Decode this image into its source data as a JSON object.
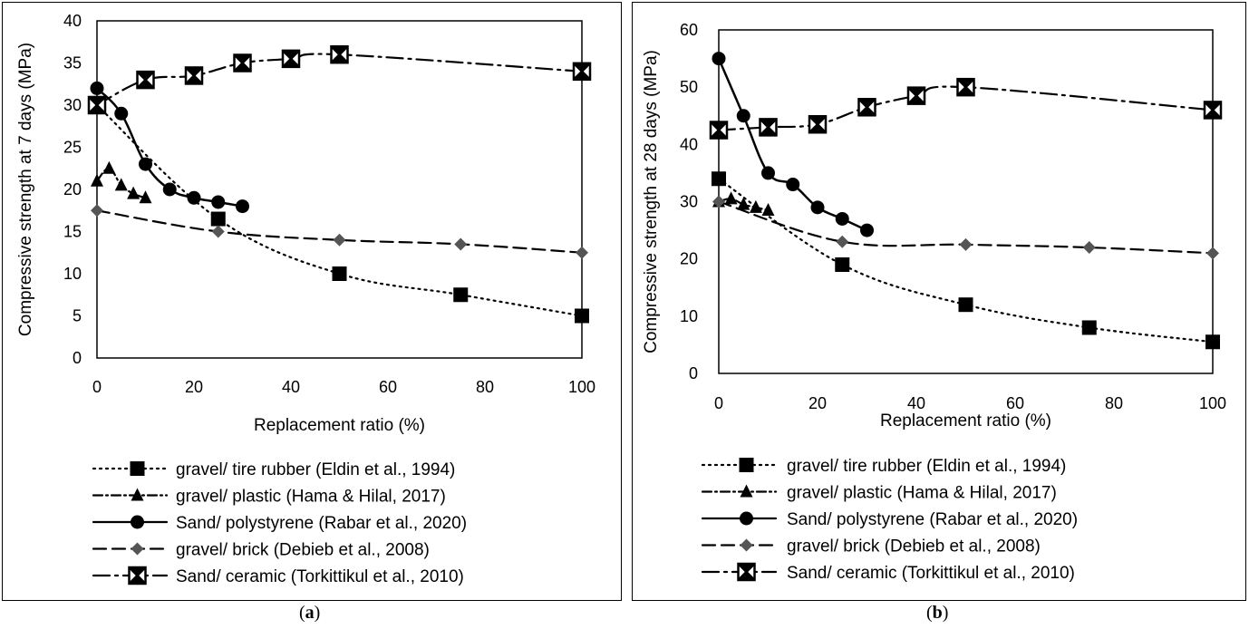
{
  "chart_data": [
    {
      "type": "line",
      "panel_label": "a",
      "xlabel": "Replacement ratio (%)",
      "ylabel": "Compressive strength at 7 days (MPa)",
      "xlim": [
        0,
        100
      ],
      "ylim": [
        0,
        40
      ],
      "xticks": [
        0,
        20,
        40,
        60,
        80,
        100
      ],
      "yticks": [
        0,
        5,
        10,
        15,
        20,
        25,
        30,
        35,
        40
      ],
      "grid": false,
      "legend_position": "bottom",
      "series": [
        {
          "name": "gravel/ tire rubber (Eldin et al., 1994)",
          "line": "dotted",
          "marker": "square",
          "x": [
            0,
            25,
            50,
            75,
            100
          ],
          "y": [
            30,
            16.5,
            10,
            7.5,
            5
          ]
        },
        {
          "name": "gravel/ plastic (Hama & Hilal, 2017)",
          "line": "dashdot",
          "marker": "triangle",
          "x": [
            0,
            2.5,
            5,
            7.5,
            10
          ],
          "y": [
            21,
            22.5,
            20.5,
            19.5,
            19
          ]
        },
        {
          "name": "Sand/ polystyrene (Rabar et al., 2020)",
          "line": "solid",
          "marker": "circle",
          "x": [
            0,
            5,
            10,
            15,
            20,
            25,
            30
          ],
          "y": [
            32,
            29,
            23,
            20,
            19,
            18.5,
            18
          ]
        },
        {
          "name": "gravel/ brick (Debieb et al., 2008)",
          "line": "longdash",
          "marker": "diamond",
          "x": [
            0,
            25,
            50,
            75,
            100
          ],
          "y": [
            17.5,
            15,
            14,
            13.5,
            12.5
          ]
        },
        {
          "name": "Sand/ ceramic (Torkittikul et al., 2010)",
          "line": "longdashdot",
          "marker": "crossbox",
          "x": [
            0,
            10,
            20,
            30,
            40,
            50,
            100
          ],
          "y": [
            30,
            33,
            33.5,
            35,
            35.5,
            36,
            34
          ]
        }
      ]
    },
    {
      "type": "line",
      "panel_label": "b",
      "xlabel": "Replacement ratio (%)",
      "ylabel": "Compressive strength at 28 days (MPa)",
      "xlim": [
        0,
        100
      ],
      "ylim": [
        0,
        60
      ],
      "xticks": [
        0,
        20,
        40,
        60,
        80,
        100
      ],
      "yticks": [
        0,
        10,
        20,
        30,
        40,
        50,
        60
      ],
      "grid": false,
      "legend_position": "bottom",
      "series": [
        {
          "name": "gravel/ tire rubber (Eldin et al., 1994)",
          "line": "dotted",
          "marker": "square",
          "x": [
            0,
            25,
            50,
            75,
            100
          ],
          "y": [
            34,
            19,
            12,
            8,
            5.5
          ]
        },
        {
          "name": "gravel/ plastic (Hama & Hilal, 2017)",
          "line": "dashdot",
          "marker": "triangle",
          "x": [
            0,
            2.5,
            5,
            7.5,
            10
          ],
          "y": [
            30,
            30.5,
            29.5,
            29,
            28.5
          ]
        },
        {
          "name": "Sand/ polystyrene (Rabar et al., 2020)",
          "line": "solid",
          "marker": "circle",
          "x": [
            0,
            5,
            10,
            15,
            20,
            25,
            30
          ],
          "y": [
            55,
            45,
            35,
            33,
            29,
            27,
            25
          ]
        },
        {
          "name": "gravel/ brick (Debieb et al., 2008)",
          "line": "longdash",
          "marker": "diamond",
          "x": [
            0,
            25,
            50,
            75,
            100
          ],
          "y": [
            30,
            23,
            22.5,
            22,
            21
          ]
        },
        {
          "name": "Sand/ ceramic (Torkittikul et al., 2010)",
          "line": "longdashdot",
          "marker": "crossbox",
          "x": [
            0,
            10,
            20,
            30,
            40,
            50,
            100
          ],
          "y": [
            42.5,
            43,
            43.5,
            46.5,
            48.5,
            50,
            46
          ]
        }
      ]
    }
  ]
}
